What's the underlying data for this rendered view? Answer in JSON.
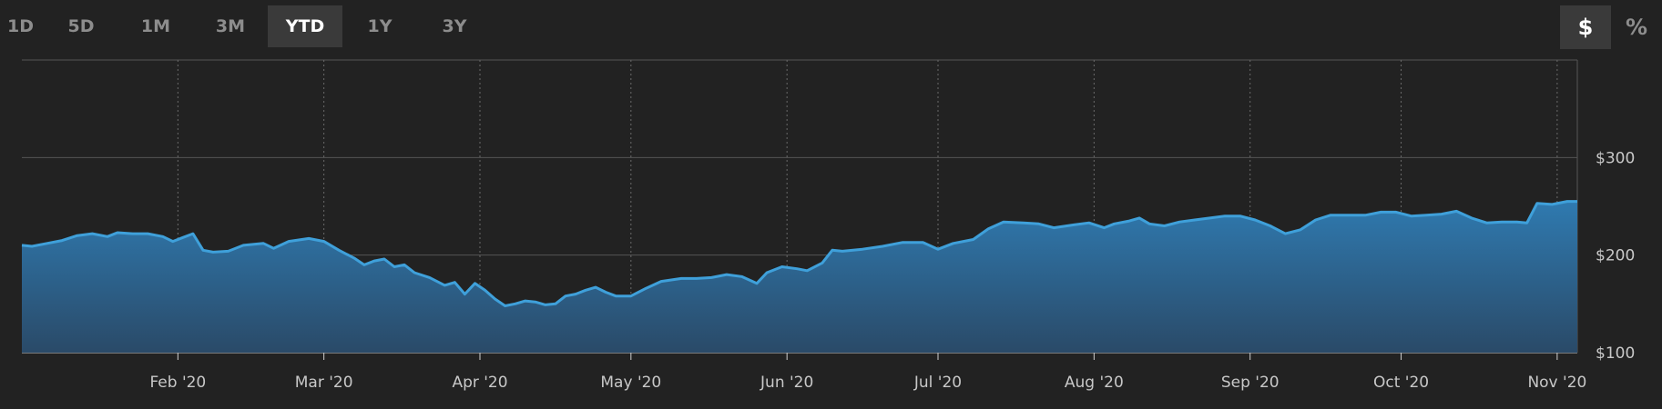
{
  "toolbar": {
    "ranges": [
      "1D",
      "5D",
      "1M",
      "3M",
      "YTD",
      "1Y",
      "3Y"
    ],
    "active_range": "YTD",
    "units": [
      "$",
      "%"
    ],
    "active_unit": "$"
  },
  "chart_data": {
    "type": "area",
    "title": "",
    "xlabel": "",
    "ylabel": "",
    "x_range": [
      "2020-01-01",
      "2020-11-05"
    ],
    "ylim": [
      100,
      400
    ],
    "y_ticks": [
      {
        "value": 100,
        "label": "$100"
      },
      {
        "value": 200,
        "label": "$200"
      },
      {
        "value": 300,
        "label": "$300"
      }
    ],
    "x_ticks": [
      {
        "date": "2020-02-01",
        "label": "Feb '20"
      },
      {
        "date": "2020-03-01",
        "label": "Mar '20"
      },
      {
        "date": "2020-04-01",
        "label": "Apr '20"
      },
      {
        "date": "2020-05-01",
        "label": "May '20"
      },
      {
        "date": "2020-06-01",
        "label": "Jun '20"
      },
      {
        "date": "2020-07-01",
        "label": "Jul '20"
      },
      {
        "date": "2020-08-01",
        "label": "Aug '20"
      },
      {
        "date": "2020-09-01",
        "label": "Sep '20"
      },
      {
        "date": "2020-10-01",
        "label": "Oct '20"
      },
      {
        "date": "2020-11-01",
        "label": "Nov '20"
      }
    ],
    "grid": true,
    "colors": {
      "line": "#3fa0da",
      "fill_top": "#2f7ab0",
      "fill_bottom": "#2a4a68",
      "grid": "#555555",
      "background": "#222222"
    },
    "points": [
      [
        "2020-01-01",
        210
      ],
      [
        "2020-01-03",
        209
      ],
      [
        "2020-01-06",
        212
      ],
      [
        "2020-01-09",
        215
      ],
      [
        "2020-01-12",
        220
      ],
      [
        "2020-01-15",
        222
      ],
      [
        "2020-01-18",
        219
      ],
      [
        "2020-01-20",
        223
      ],
      [
        "2020-01-23",
        222
      ],
      [
        "2020-01-26",
        222
      ],
      [
        "2020-01-29",
        219
      ],
      [
        "2020-01-31",
        214
      ],
      [
        "2020-02-02",
        218
      ],
      [
        "2020-02-04",
        222
      ],
      [
        "2020-02-06",
        205
      ],
      [
        "2020-02-08",
        203
      ],
      [
        "2020-02-11",
        204
      ],
      [
        "2020-02-14",
        210
      ],
      [
        "2020-02-18",
        212
      ],
      [
        "2020-02-20",
        207
      ],
      [
        "2020-02-23",
        214
      ],
      [
        "2020-02-27",
        217
      ],
      [
        "2020-03-01",
        214
      ],
      [
        "2020-03-04",
        205
      ],
      [
        "2020-03-07",
        197
      ],
      [
        "2020-03-09",
        190
      ],
      [
        "2020-03-11",
        194
      ],
      [
        "2020-03-13",
        196
      ],
      [
        "2020-03-15",
        188
      ],
      [
        "2020-03-17",
        190
      ],
      [
        "2020-03-19",
        182
      ],
      [
        "2020-03-22",
        177
      ],
      [
        "2020-03-25",
        169
      ],
      [
        "2020-03-27",
        172
      ],
      [
        "2020-03-29",
        160
      ],
      [
        "2020-03-31",
        171
      ],
      [
        "2020-04-02",
        164
      ],
      [
        "2020-04-04",
        155
      ],
      [
        "2020-04-06",
        148
      ],
      [
        "2020-04-08",
        150
      ],
      [
        "2020-04-10",
        153
      ],
      [
        "2020-04-12",
        152
      ],
      [
        "2020-04-14",
        149
      ],
      [
        "2020-04-16",
        150
      ],
      [
        "2020-04-18",
        158
      ],
      [
        "2020-04-20",
        160
      ],
      [
        "2020-04-22",
        164
      ],
      [
        "2020-04-24",
        167
      ],
      [
        "2020-04-26",
        162
      ],
      [
        "2020-04-28",
        158
      ],
      [
        "2020-05-01",
        158
      ],
      [
        "2020-05-04",
        166
      ],
      [
        "2020-05-07",
        173
      ],
      [
        "2020-05-11",
        176
      ],
      [
        "2020-05-14",
        176
      ],
      [
        "2020-05-17",
        177
      ],
      [
        "2020-05-20",
        180
      ],
      [
        "2020-05-23",
        178
      ],
      [
        "2020-05-26",
        171
      ],
      [
        "2020-05-28",
        182
      ],
      [
        "2020-05-31",
        188
      ],
      [
        "2020-06-03",
        186
      ],
      [
        "2020-06-05",
        184
      ],
      [
        "2020-06-08",
        192
      ],
      [
        "2020-06-10",
        205
      ],
      [
        "2020-06-12",
        204
      ],
      [
        "2020-06-16",
        206
      ],
      [
        "2020-06-20",
        209
      ],
      [
        "2020-06-24",
        213
      ],
      [
        "2020-06-28",
        213
      ],
      [
        "2020-07-01",
        206
      ],
      [
        "2020-07-04",
        212
      ],
      [
        "2020-07-08",
        216
      ],
      [
        "2020-07-11",
        227
      ],
      [
        "2020-07-14",
        234
      ],
      [
        "2020-07-18",
        233
      ],
      [
        "2020-07-21",
        232
      ],
      [
        "2020-07-24",
        228
      ],
      [
        "2020-07-28",
        231
      ],
      [
        "2020-07-31",
        233
      ],
      [
        "2020-08-03",
        228
      ],
      [
        "2020-08-05",
        232
      ],
      [
        "2020-08-08",
        235
      ],
      [
        "2020-08-10",
        238
      ],
      [
        "2020-08-12",
        232
      ],
      [
        "2020-08-15",
        230
      ],
      [
        "2020-08-18",
        234
      ],
      [
        "2020-08-21",
        236
      ],
      [
        "2020-08-24",
        238
      ],
      [
        "2020-08-27",
        240
      ],
      [
        "2020-08-30",
        240
      ],
      [
        "2020-09-02",
        236
      ],
      [
        "2020-09-05",
        230
      ],
      [
        "2020-09-08",
        222
      ],
      [
        "2020-09-11",
        226
      ],
      [
        "2020-09-14",
        236
      ],
      [
        "2020-09-17",
        241
      ],
      [
        "2020-09-21",
        241
      ],
      [
        "2020-09-24",
        241
      ],
      [
        "2020-09-27",
        244
      ],
      [
        "2020-09-30",
        244
      ],
      [
        "2020-10-03",
        240
      ],
      [
        "2020-10-06",
        241
      ],
      [
        "2020-10-09",
        242
      ],
      [
        "2020-10-12",
        245
      ],
      [
        "2020-10-15",
        238
      ],
      [
        "2020-10-18",
        233
      ],
      [
        "2020-10-21",
        234
      ],
      [
        "2020-10-24",
        234
      ],
      [
        "2020-10-26",
        233
      ],
      [
        "2020-10-28",
        253
      ],
      [
        "2020-10-31",
        252
      ],
      [
        "2020-11-03",
        255
      ],
      [
        "2020-11-05",
        255
      ]
    ]
  }
}
